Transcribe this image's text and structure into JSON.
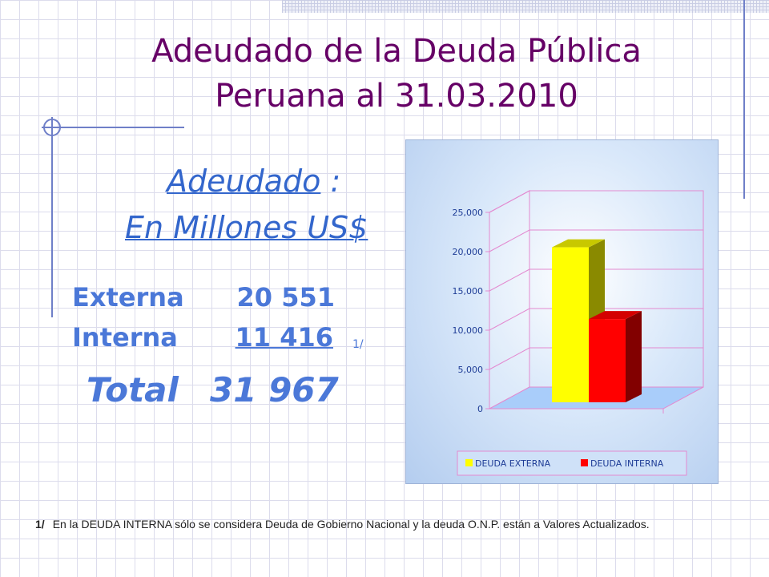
{
  "slide": {
    "title_line1": "Adeudado de la Deuda Pública",
    "title_line2": "Peruana al 31.03.2010",
    "subtitle_word": "Adeudado",
    "subtitle_colon": " :",
    "subtitle_units": "En Millones US$"
  },
  "summary": {
    "rows": [
      {
        "label": "Externa",
        "value": "20 551"
      },
      {
        "label": "Interna",
        "value": "11 416",
        "mark": "1/"
      }
    ],
    "total_label": "Total",
    "total_value": "31 967"
  },
  "footnote": {
    "mark": "1/",
    "text": "En la DEUDA INTERNA sólo se considera Deuda de Gobierno Nacional y la deuda O.N.P. están a Valores Actualizados."
  },
  "chart_data": {
    "type": "bar",
    "title": "",
    "xlabel": "",
    "ylabel": "",
    "categories": [
      ""
    ],
    "series": [
      {
        "name": "DEUDA EXTERNA",
        "values": [
          20551
        ],
        "color": "#ffff00"
      },
      {
        "name": "DEUDA INTERNA",
        "values": [
          11416
        ],
        "color": "#ff0000"
      }
    ],
    "ylim": [
      0,
      25000
    ],
    "yticks": [
      "0",
      "5,000",
      "10,000",
      "15,000",
      "20,000",
      "25,000"
    ],
    "grid": true,
    "legend_position": "bottom",
    "style": "3d"
  },
  "colors": {
    "title": "#660066",
    "text_accent": "#4b78d8"
  }
}
